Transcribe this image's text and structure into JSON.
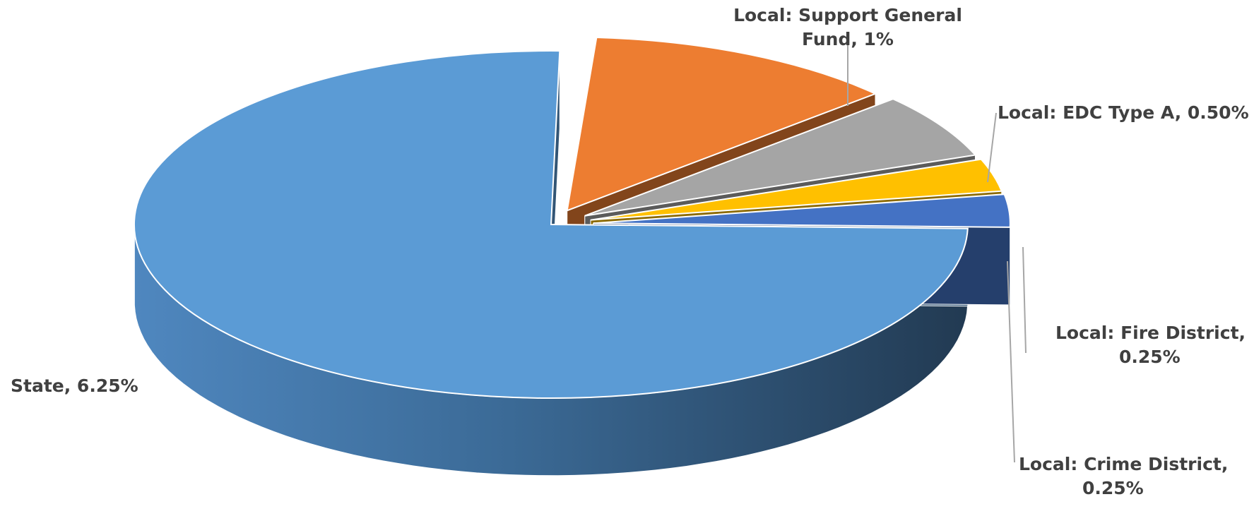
{
  "chart_data": {
    "type": "pie",
    "title": "",
    "slices": [
      {
        "name": "State",
        "value": 6.25,
        "label": "State, 6.25%",
        "color": "#5b9bd5",
        "label_lines": [
          "State, 6.25%"
        ]
      },
      {
        "name": "Local:  Support General Fund",
        "value": 1,
        "label": "Local:  Support General Fund, 1%",
        "color": "#ed7d31",
        "label_lines": [
          "Local:  Support General",
          "Fund, 1%"
        ]
      },
      {
        "name": "Local:  EDC Type A",
        "value": 0.5,
        "label": "Local:  EDC Type A, 0.50%",
        "color": "#a5a5a5",
        "label_lines": [
          "Local:  EDC Type A, 0.50%"
        ]
      },
      {
        "name": "Local:  Fire District",
        "value": 0.25,
        "label": "Local:  Fire District, 0.25%",
        "color": "#ffc000",
        "label_lines": [
          "Local:  Fire District,",
          "0.25%"
        ]
      },
      {
        "name": "Local:  Crime District",
        "value": 0.25,
        "label": "Local:  Crime District, 0.25%",
        "color": "#4472c4",
        "label_lines": [
          "Local:  Crime District,",
          "0.25%"
        ]
      }
    ],
    "style": "3d-exploded",
    "legend": "none"
  }
}
